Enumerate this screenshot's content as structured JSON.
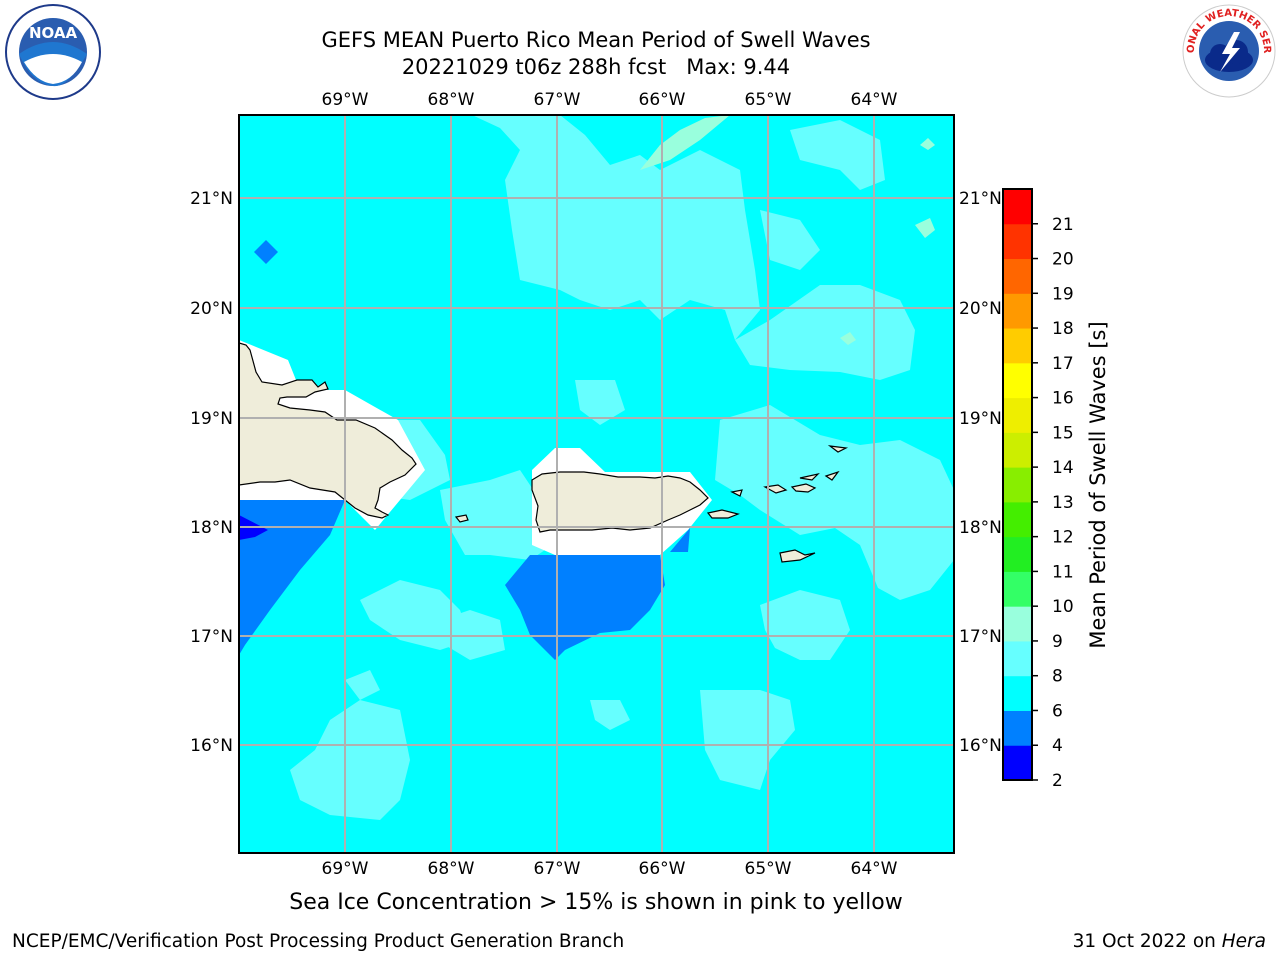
{
  "title": {
    "line1": "GEFS MEAN Puerto Rico Mean Period of Swell Waves",
    "line2": "20221029 t06z 288h fcst   Max: 9.44"
  },
  "logos": {
    "left_text": "NOAA",
    "left_ring_text": "NATIONAL OCEANIC AND ATMOSPHERIC ADMINISTRATION · U.S. DEPARTMENT OF COMMERCE",
    "right_ring_text": "NATIONAL WEATHER SERVICE"
  },
  "map": {
    "lon_labels": [
      "69°W",
      "68°W",
      "67°W",
      "66°W",
      "65°W",
      "64°W"
    ],
    "lat_labels": [
      "21°N",
      "20°N",
      "19°N",
      "18°N",
      "17°N",
      "16°N"
    ],
    "ocean_color": "#00ffff",
    "land_color": "#efedda"
  },
  "colorbar": {
    "label": "Mean Period of Swell Waves [s]",
    "levels": [
      "2",
      "4",
      "6",
      "8",
      "9",
      "10",
      "11",
      "12",
      "13",
      "14",
      "15",
      "16",
      "17",
      "18",
      "19",
      "20",
      "21"
    ],
    "colors": [
      "#0000ff",
      "#0080ff",
      "#00ffff",
      "#66ffff",
      "#99ffdd",
      "#33ff66",
      "#22ee22",
      "#44ee00",
      "#88ee00",
      "#ccee00",
      "#eeee00",
      "#ffff00",
      "#ffcc00",
      "#ff9900",
      "#ff6600",
      "#ff3300",
      "#ff0000"
    ]
  },
  "footer": {
    "note": "Sea Ice Concentration > 15% is shown in pink to yellow",
    "left": "NCEP/EMC/Verification Post Processing Product Generation Branch",
    "right_date": "31 Oct 2022 on",
    "right_host": "Hera"
  }
}
